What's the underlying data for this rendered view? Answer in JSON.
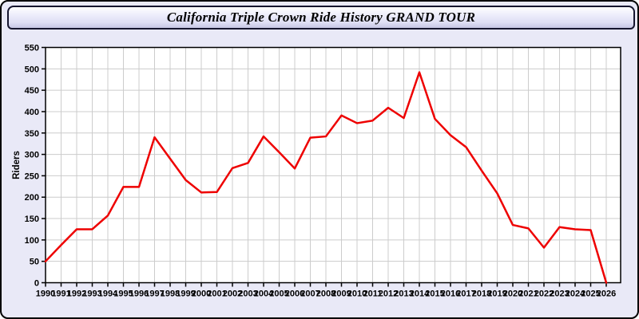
{
  "page": {
    "background_color": "#E9E9F7",
    "border_color": "#000000"
  },
  "header": {
    "title": "California Triple Crown Ride History GRAND TOUR"
  },
  "chart_data": {
    "type": "line",
    "title": "California Triple Crown Ride History GRAND TOUR",
    "xlabel": "",
    "ylabel": "Riders",
    "x": [
      1990,
      1991,
      1992,
      1993,
      1994,
      1995,
      1996,
      1997,
      1998,
      1999,
      2000,
      2001,
      2002,
      2003,
      2004,
      2005,
      2006,
      2007,
      2008,
      2009,
      2010,
      2011,
      2012,
      2013,
      2014,
      2015,
      2016,
      2017,
      2018,
      2019,
      2020,
      2021,
      2022,
      2023,
      2024,
      2025,
      2026
    ],
    "series": [
      {
        "name": "Riders",
        "color": "#EE0000",
        "values": [
          50,
          88,
          125,
          125,
          157,
          224,
          224,
          340,
          290,
          240,
          211,
          212,
          268,
          280,
          342,
          305,
          267,
          339,
          342,
          391,
          373,
          379,
          409,
          385,
          492,
          383,
          345,
          317,
          262,
          209,
          135,
          127,
          82,
          130,
          125,
          123,
          0
        ]
      }
    ],
    "ylim": [
      0,
      550
    ],
    "ytick_step": 50,
    "grid": true,
    "grid_color": "#CCCCCC",
    "plot_background": "#FFFFFF",
    "axis_color": "#000000",
    "legend": false
  }
}
